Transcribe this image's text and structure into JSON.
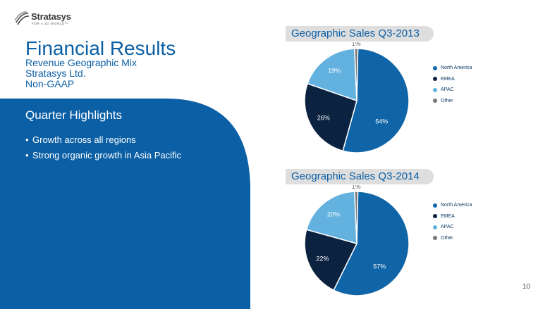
{
  "logo": {
    "name": "Stratasys",
    "tagline": "FOR A 3D WORLD™"
  },
  "slide": {
    "title": "Financial Results",
    "subtitle_lines": [
      "Revenue Geographic Mix",
      "Stratasys Ltd.",
      "Non-GAAP"
    ],
    "section_heading": "Quarter Highlights",
    "bullets": [
      "Growth across all regions",
      "Strong organic growth in Asia Pacific"
    ],
    "bullet_glyph": "•",
    "page_number": "10"
  },
  "colors": {
    "north_america": "#0f65a7",
    "emea": "#0b2240",
    "apac": "#63b1df",
    "other": "#777777",
    "panel_blue": "#0b5fa5",
    "title_blue": "#0b5fa5"
  },
  "chart_data": [
    {
      "type": "pie",
      "title": "Geographic Sales Q3-2013",
      "categories": [
        "North America",
        "EMEA",
        "APAC",
        "Other"
      ],
      "values": [
        54,
        26,
        19,
        1
      ],
      "labels": [
        "54%",
        "26%",
        "19%",
        "1%"
      ],
      "legend": "right"
    },
    {
      "type": "pie",
      "title": "Geographic Sales Q3-2014",
      "categories": [
        "North America",
        "EMEA",
        "APAC",
        "Other"
      ],
      "values": [
        57,
        22,
        20,
        1
      ],
      "labels": [
        "57%",
        "22%",
        "20%",
        "1%"
      ],
      "legend": "right"
    }
  ]
}
